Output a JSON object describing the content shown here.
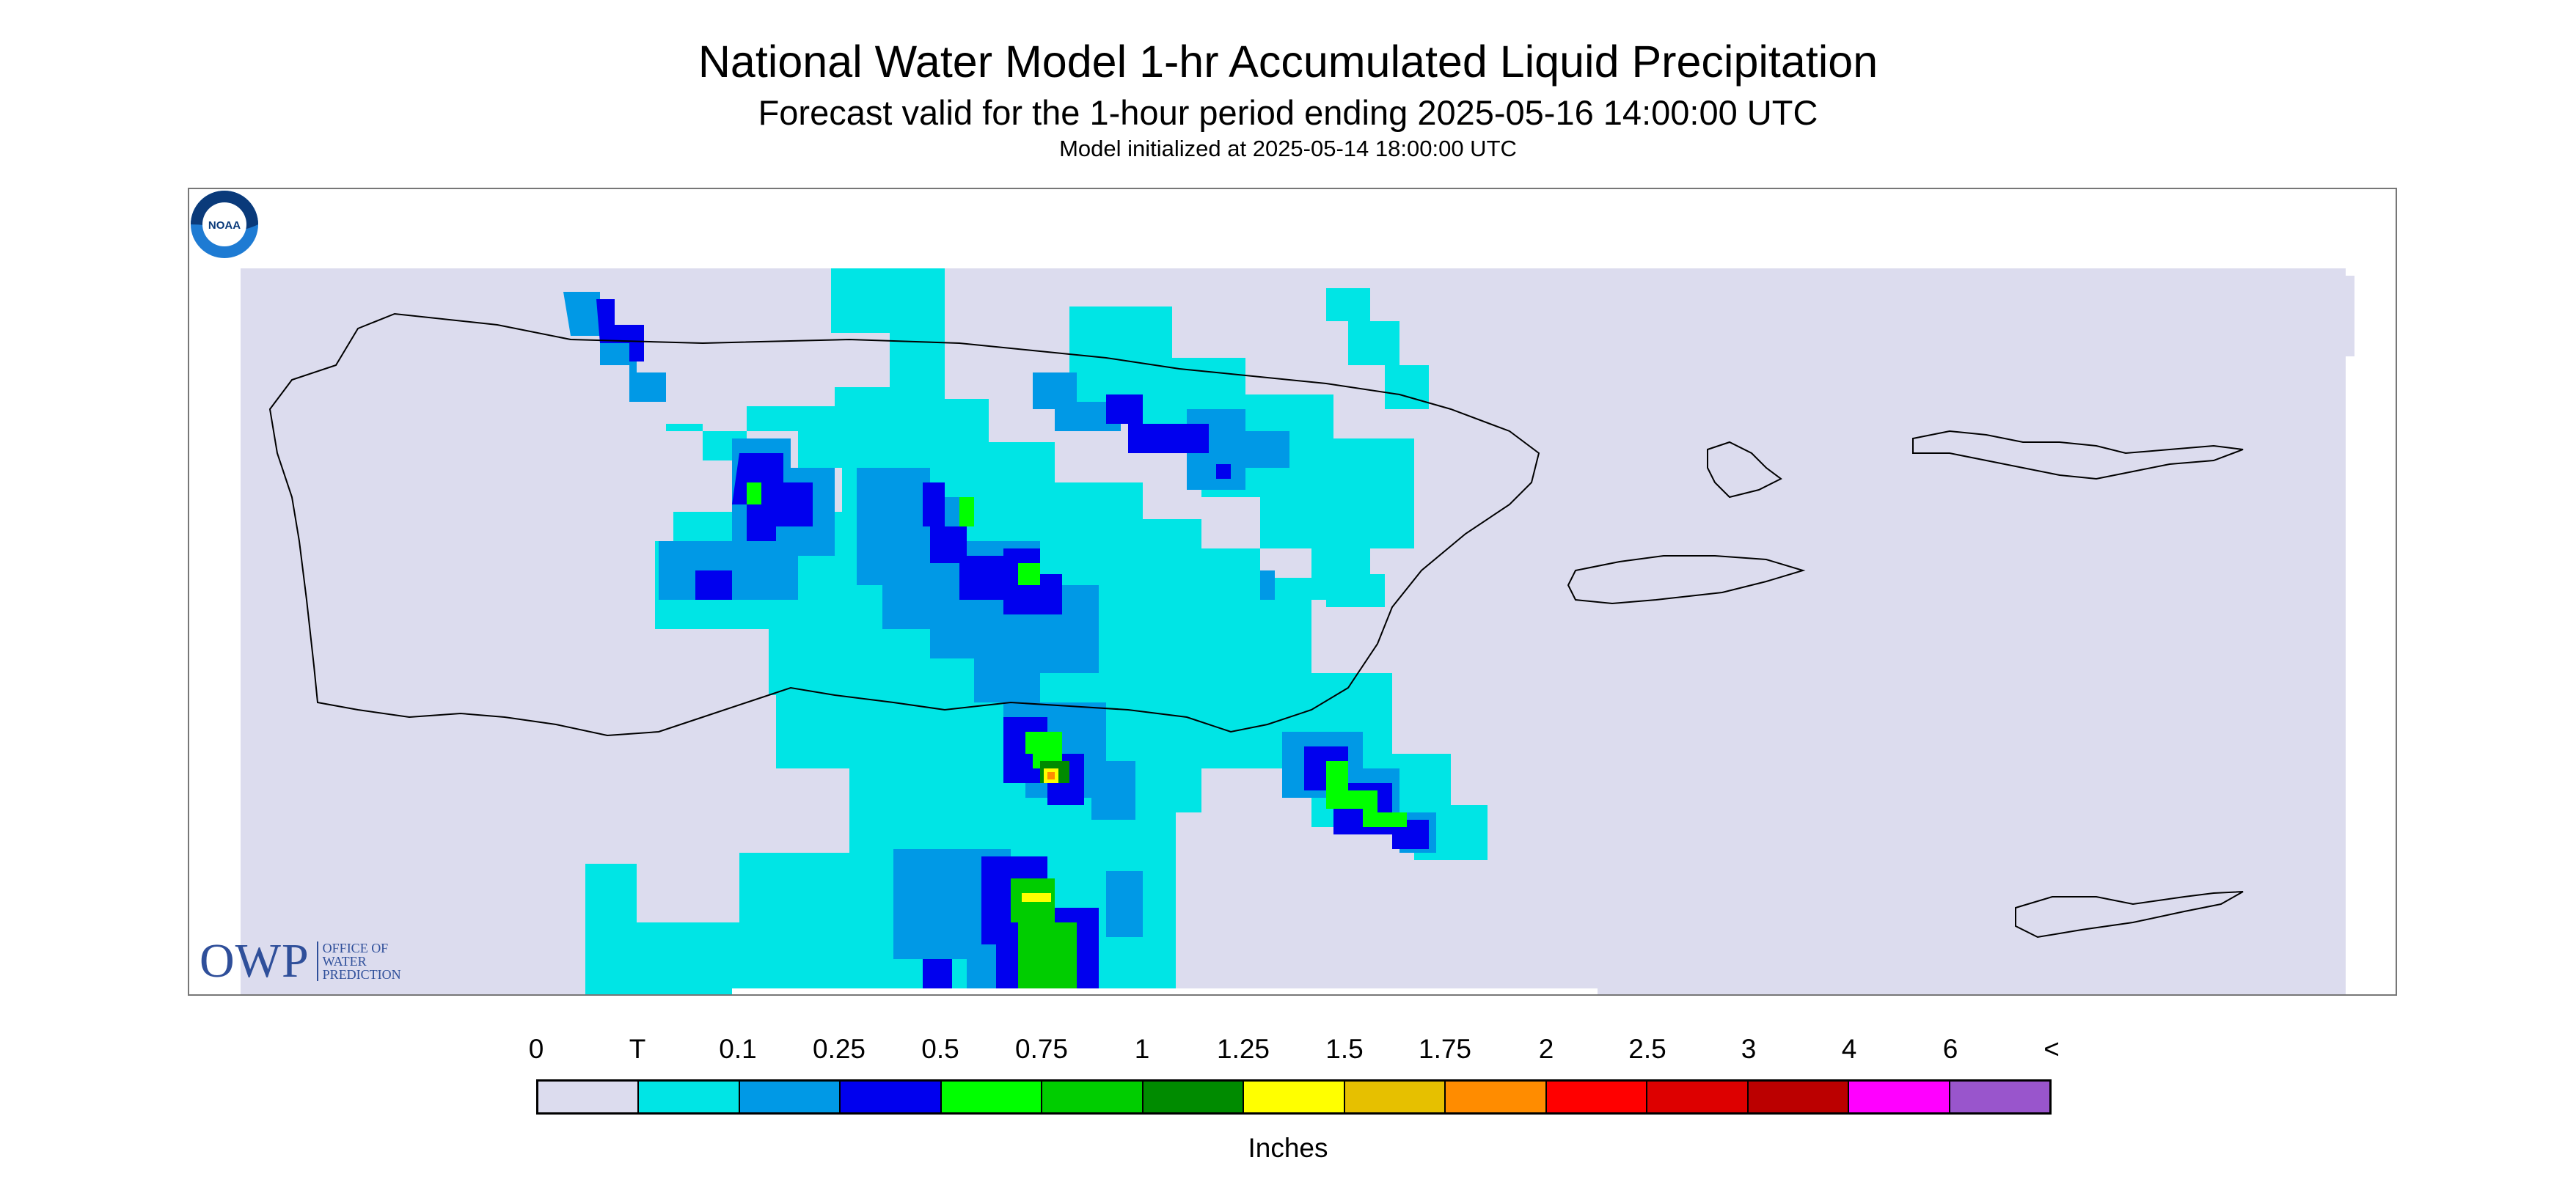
{
  "title": "National Water Model 1-hr Accumulated Liquid Precipitation",
  "subtitle": "Forecast valid for the 1-hour period ending 2025-05-16 14:00:00 UTC",
  "init": "Model initialized at 2025-05-14 18:00:00 UTC",
  "logos": {
    "owp": {
      "mark": "OWP",
      "lines": [
        "OFFICE OF",
        "WATER",
        "PREDICTION"
      ]
    },
    "noaa": "NOAA"
  },
  "legend": {
    "labels": [
      "0",
      "T",
      "0.1",
      "0.25",
      "0.5",
      "0.75",
      "1",
      "1.25",
      "1.5",
      "1.75",
      "2",
      "2.5",
      "3",
      "4",
      "6",
      "<"
    ],
    "colors": [
      "#dcdcee",
      "#00e5e5",
      "#0099e6",
      "#0000ee",
      "#00ff00",
      "#00cd00",
      "#008b00",
      "#ffff00",
      "#e6c000",
      "#ff8c00",
      "#ff0000",
      "#dd0000",
      "#bb0000",
      "#ff00ff",
      "#9955cc"
    ],
    "units": "Inches"
  },
  "colors": {
    "no_rain": "#dcdcee",
    "trace": "#00e5e5",
    "light": "#0099e6",
    "moderate": "#0000ee",
    "heavy": "#00ff00",
    "heavier": "#00cd00",
    "very_heavy": "#008b00",
    "intense": "#ffff00",
    "extreme": "#ff8c00"
  }
}
